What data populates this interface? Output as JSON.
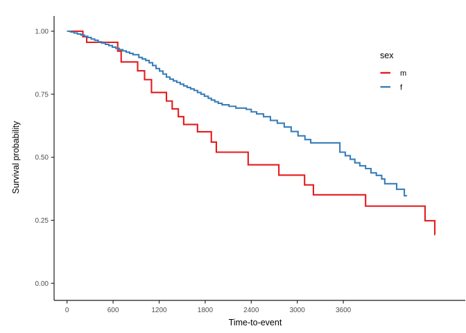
{
  "figure": {
    "x_axis_title": "Time-to-event",
    "y_axis_title": "Survival probability",
    "x_tick_labels": [
      "0",
      "600",
      "1200",
      "1800",
      "2400",
      "3000",
      "3600"
    ],
    "y_tick_labels": [
      "0.00",
      "0.25",
      "0.50",
      "0.75",
      "1.00"
    ]
  },
  "legend": {
    "title": "sex",
    "items": [
      {
        "label": "m",
        "color": "#E41A1C"
      },
      {
        "label": "f",
        "color": "#377EB8"
      }
    ]
  },
  "chart_data": {
    "type": "line",
    "subtype": "kaplan-meier-step-curves",
    "title": "",
    "xlabel": "Time-to-event",
    "ylabel": "Survival probability",
    "xlim": [
      0,
      5200
    ],
    "ylim": [
      0.0,
      1.0
    ],
    "x_ticks": [
      0,
      600,
      1200,
      1800,
      2400,
      3000,
      3600
    ],
    "y_ticks": [
      0.0,
      0.25,
      0.5,
      0.75,
      1.0
    ],
    "grid": false,
    "legend_title": "sex",
    "legend_position": "inside-top-right",
    "series": [
      {
        "name": "m",
        "color": "#E41A1C",
        "start": [
          0,
          1.0
        ],
        "end_time": 4795,
        "steps": [
          [
            206,
            0.978
          ],
          [
            256,
            0.956
          ],
          [
            660,
            0.921
          ],
          [
            705,
            0.878
          ],
          [
            920,
            0.843
          ],
          [
            1010,
            0.808
          ],
          [
            1100,
            0.757
          ],
          [
            1295,
            0.723
          ],
          [
            1370,
            0.692
          ],
          [
            1450,
            0.661
          ],
          [
            1520,
            0.63
          ],
          [
            1700,
            0.601
          ],
          [
            1880,
            0.56
          ],
          [
            1945,
            0.52
          ],
          [
            2360,
            0.47
          ],
          [
            2760,
            0.429
          ],
          [
            3095,
            0.39
          ],
          [
            3210,
            0.351
          ],
          [
            3890,
            0.306
          ],
          [
            4665,
            0.248
          ],
          [
            4792,
            0.193
          ]
        ]
      },
      {
        "name": "f",
        "color": "#377EB8",
        "start": [
          0,
          1.0
        ],
        "end_time": 4430,
        "steps": [
          [
            45,
            0.997
          ],
          [
            90,
            0.993
          ],
          [
            135,
            0.989
          ],
          [
            180,
            0.985
          ],
          [
            225,
            0.98
          ],
          [
            270,
            0.975
          ],
          [
            315,
            0.969
          ],
          [
            360,
            0.964
          ],
          [
            405,
            0.958
          ],
          [
            450,
            0.953
          ],
          [
            500,
            0.948
          ],
          [
            545,
            0.943
          ],
          [
            590,
            0.937
          ],
          [
            635,
            0.932
          ],
          [
            680,
            0.927
          ],
          [
            725,
            0.922
          ],
          [
            770,
            0.917
          ],
          [
            815,
            0.912
          ],
          [
            860,
            0.907
          ],
          [
            935,
            0.896
          ],
          [
            980,
            0.89
          ],
          [
            1025,
            0.884
          ],
          [
            1070,
            0.875
          ],
          [
            1115,
            0.864
          ],
          [
            1160,
            0.852
          ],
          [
            1205,
            0.842
          ],
          [
            1250,
            0.83
          ],
          [
            1295,
            0.818
          ],
          [
            1340,
            0.81
          ],
          [
            1385,
            0.803
          ],
          [
            1430,
            0.797
          ],
          [
            1475,
            0.79
          ],
          [
            1520,
            0.783
          ],
          [
            1565,
            0.777
          ],
          [
            1610,
            0.771
          ],
          [
            1655,
            0.765
          ],
          [
            1700,
            0.757
          ],
          [
            1745,
            0.75
          ],
          [
            1790,
            0.742
          ],
          [
            1840,
            0.734
          ],
          [
            1880,
            0.727
          ],
          [
            1925,
            0.72
          ],
          [
            1970,
            0.714
          ],
          [
            2020,
            0.708
          ],
          [
            2110,
            0.702
          ],
          [
            2200,
            0.695
          ],
          [
            2335,
            0.69
          ],
          [
            2400,
            0.68
          ],
          [
            2470,
            0.672
          ],
          [
            2560,
            0.661
          ],
          [
            2650,
            0.646
          ],
          [
            2740,
            0.635
          ],
          [
            2830,
            0.62
          ],
          [
            2920,
            0.602
          ],
          [
            3010,
            0.585
          ],
          [
            3100,
            0.57
          ],
          [
            3175,
            0.557
          ],
          [
            3555,
            0.52
          ],
          [
            3625,
            0.506
          ],
          [
            3690,
            0.492
          ],
          [
            3750,
            0.478
          ],
          [
            3815,
            0.466
          ],
          [
            3890,
            0.455
          ],
          [
            3960,
            0.438
          ],
          [
            4030,
            0.428
          ],
          [
            4100,
            0.414
          ],
          [
            4140,
            0.395
          ],
          [
            4295,
            0.373
          ],
          [
            4395,
            0.347
          ]
        ]
      }
    ]
  }
}
